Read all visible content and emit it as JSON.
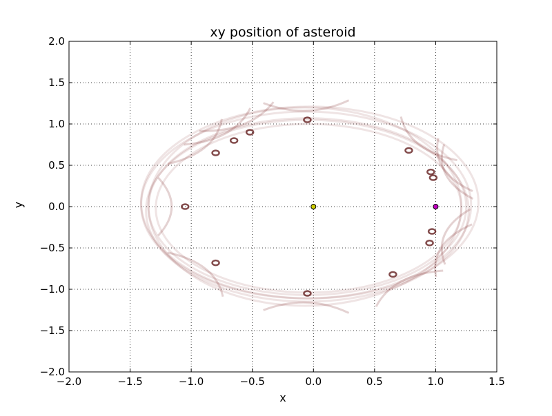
{
  "chart_data": {
    "type": "scatter",
    "title": "xy position of asteroid",
    "xlabel": "x",
    "ylabel": "y",
    "xlim": [
      -2.0,
      1.5
    ],
    "ylim": [
      -2.0,
      2.0
    ],
    "grid": true,
    "xticks": [
      -2.0,
      -1.5,
      -1.0,
      -0.5,
      0.0,
      0.5,
      1.0,
      1.5
    ],
    "yticks": [
      -2.0,
      -1.5,
      -1.0,
      -0.5,
      0.0,
      0.5,
      1.0,
      1.5,
      2.0
    ],
    "xtick_labels": [
      "−2.0",
      "−1.5",
      "−1.0",
      "−0.5",
      "0.0",
      "0.5",
      "1.0",
      "1.5"
    ],
    "ytick_labels": [
      "−2.0",
      "−1.5",
      "−1.0",
      "−0.5",
      "0.0",
      "0.5",
      "1.0",
      "1.5",
      "2.0"
    ],
    "trajectory_color": "#7a2020",
    "sun": {
      "x": 0.0,
      "y": 0.0,
      "color": "#cccc00"
    },
    "planet": {
      "x": 1.0,
      "y": 0.0,
      "color": "#c000c0"
    },
    "cusps": [
      {
        "x": -0.05,
        "y": 1.05
      },
      {
        "x": -0.52,
        "y": 0.9
      },
      {
        "x": -0.65,
        "y": 0.8
      },
      {
        "x": -0.8,
        "y": 0.65
      },
      {
        "x": -1.05,
        "y": 0.0
      },
      {
        "x": -0.8,
        "y": -0.68
      },
      {
        "x": -0.05,
        "y": -1.05
      },
      {
        "x": 0.65,
        "y": -0.82
      },
      {
        "x": 0.78,
        "y": 0.68
      },
      {
        "x": 0.96,
        "y": 0.42
      },
      {
        "x": 0.98,
        "y": 0.35
      },
      {
        "x": 0.97,
        "y": -0.3
      },
      {
        "x": 0.95,
        "y": -0.44
      }
    ]
  }
}
